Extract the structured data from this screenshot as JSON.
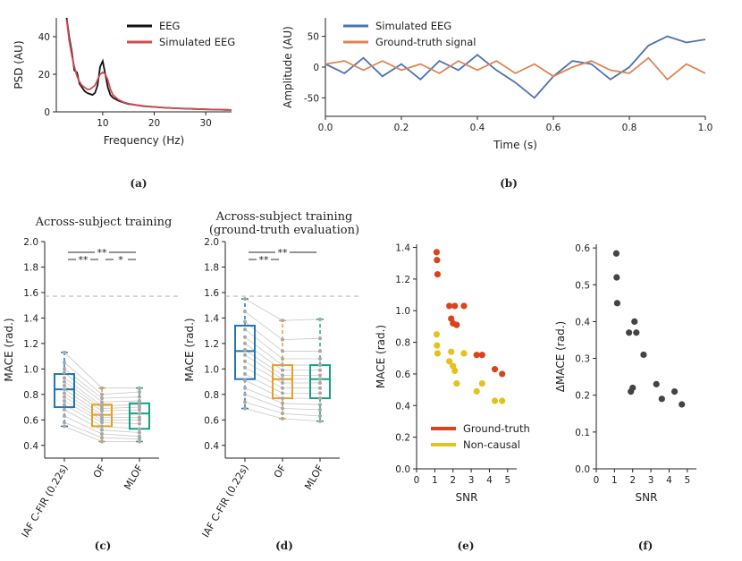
{
  "panel_labels": {
    "a": "(a)",
    "b": "(b)",
    "c": "(c)",
    "d": "(d)",
    "e": "(e)",
    "f": "(f)"
  },
  "chart_data": [
    {
      "id": "a",
      "type": "line",
      "xlabel": "Frequency (Hz)",
      "ylabel": "PSD (AU)",
      "xlim": [
        1,
        35
      ],
      "ylim": [
        0,
        50
      ],
      "xticks": [
        10,
        20,
        30
      ],
      "yticks": [
        0,
        20,
        40
      ],
      "legend": {
        "placement": "top-right"
      },
      "series": [
        {
          "name": "EEG",
          "color": "#111111",
          "x": [
            3,
            3.5,
            4,
            4.5,
            5,
            5.5,
            6,
            6.5,
            7,
            7.5,
            8,
            8.5,
            9,
            9.5,
            10,
            10.5,
            11,
            11.5,
            12,
            13,
            14,
            15,
            16,
            18,
            20,
            22,
            24,
            26,
            28,
            30,
            32,
            35
          ],
          "y": [
            50,
            40,
            32,
            22,
            21,
            15,
            13,
            11,
            10,
            9.5,
            9,
            10,
            14,
            24,
            27,
            20,
            13,
            9,
            7.5,
            6,
            5,
            4.2,
            3.8,
            3,
            2.6,
            2.2,
            1.9,
            1.7,
            1.5,
            1.4,
            1.2,
            1.0
          ]
        },
        {
          "name": "Simulated EEG",
          "color": "#d24b4e",
          "x": [
            3,
            3.5,
            4,
            4.5,
            5,
            5.5,
            6,
            6.5,
            7,
            7.5,
            8,
            8.5,
            9,
            9.5,
            10,
            10.5,
            11,
            11.5,
            12,
            13,
            14,
            15,
            16,
            18,
            20,
            22,
            24,
            26,
            28,
            30,
            32,
            35
          ],
          "y": [
            49,
            38,
            30,
            24,
            19,
            16,
            14,
            13,
            12,
            12,
            13,
            14,
            17,
            20,
            21,
            20,
            17,
            12,
            9,
            6.5,
            5.2,
            4.4,
            3.9,
            3.1,
            2.6,
            2.2,
            1.9,
            1.7,
            1.5,
            1.3,
            1.2,
            1.0
          ]
        }
      ]
    },
    {
      "id": "b",
      "type": "line",
      "xlabel": "Time (s)",
      "ylabel": "Amplitude (AU)",
      "xlim": [
        0,
        1
      ],
      "ylim": [
        -80,
        80
      ],
      "xticks": [
        0,
        0.2,
        0.4,
        0.6,
        0.8,
        1.0
      ],
      "xtick_labels": [
        "0.0",
        "0.2",
        "0.4",
        "0.6",
        "0.8",
        "1.0"
      ],
      "yticks": [
        -50,
        0,
        50
      ],
      "legend": {
        "placement": "top-left"
      },
      "series": [
        {
          "name": "Simulated EEG",
          "color": "#4c72b0",
          "x": [
            0,
            0.05,
            0.1,
            0.15,
            0.2,
            0.25,
            0.3,
            0.35,
            0.4,
            0.45,
            0.5,
            0.55,
            0.6,
            0.65,
            0.7,
            0.75,
            0.8,
            0.85,
            0.9,
            0.95,
            1.0
          ],
          "y": [
            5,
            -10,
            15,
            -15,
            5,
            -20,
            10,
            -5,
            20,
            -5,
            -25,
            -50,
            -15,
            10,
            5,
            -20,
            0,
            35,
            50,
            40,
            45
          ]
        },
        {
          "name": "Ground-truth signal",
          "color": "#dd8452",
          "x": [
            0,
            0.05,
            0.1,
            0.15,
            0.2,
            0.25,
            0.3,
            0.35,
            0.4,
            0.45,
            0.5,
            0.55,
            0.6,
            0.65,
            0.7,
            0.75,
            0.8,
            0.85,
            0.9,
            0.95,
            1.0
          ],
          "y": [
            5,
            10,
            -5,
            10,
            -5,
            5,
            -10,
            10,
            -5,
            10,
            -10,
            5,
            -15,
            0,
            10,
            -5,
            -10,
            15,
            -20,
            5,
            -10
          ]
        }
      ]
    },
    {
      "id": "c",
      "type": "box",
      "title": "Across-subject training",
      "ylabel": "MACE (rad.)",
      "ylim": [
        0.3,
        2.0
      ],
      "yticks": [
        0.4,
        0.6,
        0.8,
        1.0,
        1.2,
        1.4,
        1.6,
        1.8,
        2.0
      ],
      "ytick_labels": [
        "0.4",
        "0.6",
        "0.8",
        "1.0",
        "1.2",
        "1.4",
        "1.6",
        "1.8",
        "2.0"
      ],
      "chance_level": 1.571,
      "categories": [
        "IAF C-FIR (0.22s)",
        "OF",
        "MLOF"
      ],
      "colors": [
        "#1f77b4",
        "#e5a123",
        "#16a085"
      ],
      "boxes": [
        {
          "q1": 0.7,
          "median": 0.84,
          "q3": 0.96,
          "whisker_low": 0.55,
          "whisker_high": 1.13
        },
        {
          "q1": 0.55,
          "median": 0.64,
          "q3": 0.72,
          "whisker_low": 0.43,
          "whisker_high": 0.85
        },
        {
          "q1": 0.53,
          "median": 0.65,
          "q3": 0.73,
          "whisker_low": 0.43,
          "whisker_high": 0.85
        }
      ],
      "subjects": [
        [
          1.13,
          1.05,
          1.0,
          0.97,
          0.93,
          0.9,
          0.87,
          0.84,
          0.81,
          0.78,
          0.75,
          0.72,
          0.68,
          0.63,
          0.58,
          0.55
        ],
        [
          0.85,
          0.8,
          0.77,
          0.74,
          0.71,
          0.69,
          0.67,
          0.64,
          0.62,
          0.6,
          0.58,
          0.55,
          0.52,
          0.49,
          0.46,
          0.43
        ],
        [
          0.85,
          0.82,
          0.78,
          0.75,
          0.72,
          0.7,
          0.68,
          0.65,
          0.62,
          0.6,
          0.57,
          0.53,
          0.5,
          0.47,
          0.45,
          0.43
        ]
      ],
      "significance": [
        {
          "from": 0,
          "to": 2,
          "label": "**"
        },
        {
          "from": 0,
          "to": 1,
          "label": "**"
        },
        {
          "from": 1,
          "to": 2,
          "label": "*"
        }
      ]
    },
    {
      "id": "d",
      "type": "box",
      "title": "Across-subject training",
      "subtitle": "(ground-truth evaluation)",
      "ylabel": "MACE (rad.)",
      "ylim": [
        0.3,
        2.0
      ],
      "yticks": [
        0.4,
        0.6,
        0.8,
        1.0,
        1.2,
        1.4,
        1.6,
        1.8,
        2.0
      ],
      "ytick_labels": [
        "0.4",
        "0.6",
        "0.8",
        "1.0",
        "1.2",
        "1.4",
        "1.6",
        "1.8",
        "2.0"
      ],
      "chance_level": 1.571,
      "categories": [
        "IAF C-FIR (0.22s)",
        "OF",
        "MLOF"
      ],
      "colors": [
        "#1f77b4",
        "#e5a123",
        "#16a085"
      ],
      "boxes": [
        {
          "q1": 0.92,
          "median": 1.14,
          "q3": 1.34,
          "whisker_low": 0.69,
          "whisker_high": 1.55
        },
        {
          "q1": 0.77,
          "median": 0.92,
          "q3": 1.03,
          "whisker_low": 0.61,
          "whisker_high": 1.38
        },
        {
          "q1": 0.77,
          "median": 0.92,
          "q3": 1.03,
          "whisker_low": 0.59,
          "whisker_high": 1.39
        }
      ],
      "subjects": [
        [
          1.55,
          1.45,
          1.37,
          1.31,
          1.25,
          1.2,
          1.15,
          1.11,
          1.06,
          1.01,
          0.96,
          0.91,
          0.85,
          0.8,
          0.74,
          0.69
        ],
        [
          1.38,
          1.23,
          1.14,
          1.08,
          1.03,
          0.99,
          0.95,
          0.92,
          0.89,
          0.85,
          0.81,
          0.77,
          0.73,
          0.69,
          0.65,
          0.61
        ],
        [
          1.39,
          1.24,
          1.14,
          1.08,
          1.03,
          0.99,
          0.95,
          0.92,
          0.89,
          0.85,
          0.81,
          0.77,
          0.72,
          0.68,
          0.63,
          0.59
        ]
      ],
      "significance": [
        {
          "from": 0,
          "to": 2,
          "label": "**"
        },
        {
          "from": 0,
          "to": 1,
          "label": "**"
        }
      ]
    },
    {
      "id": "e",
      "type": "scatter",
      "xlabel": "SNR",
      "ylabel": "MACE (rad.)",
      "xlim": [
        0,
        5.5
      ],
      "ylim": [
        0,
        1.42
      ],
      "xticks": [
        0,
        1,
        2,
        3,
        4,
        5
      ],
      "yticks": [
        0.0,
        0.2,
        0.4,
        0.6,
        0.8,
        1.0,
        1.2,
        1.4
      ],
      "ytick_labels": [
        "0.0",
        "0.2",
        "0.4",
        "0.6",
        "0.8",
        "1.0",
        "1.2",
        "1.4"
      ],
      "legend": {
        "placement": "bottom-left"
      },
      "series": [
        {
          "name": "Ground-truth",
          "color": "#d9441e",
          "x": [
            1.1,
            1.12,
            1.15,
            1.8,
            1.9,
            2.0,
            2.1,
            2.2,
            2.6,
            3.3,
            3.6,
            4.3,
            4.7
          ],
          "y": [
            1.37,
            1.32,
            1.23,
            1.03,
            0.95,
            0.92,
            1.03,
            0.91,
            1.03,
            0.72,
            0.72,
            0.63,
            0.6
          ]
        },
        {
          "name": "Non-causal",
          "color": "#e4c21b",
          "x": [
            1.1,
            1.12,
            1.15,
            1.8,
            1.9,
            2.0,
            2.1,
            2.2,
            2.6,
            3.3,
            3.6,
            4.3,
            4.7
          ],
          "y": [
            0.85,
            0.78,
            0.73,
            0.68,
            0.74,
            0.65,
            0.62,
            0.54,
            0.73,
            0.49,
            0.54,
            0.43,
            0.43
          ]
        }
      ]
    },
    {
      "id": "f",
      "type": "scatter",
      "xlabel": "SNR",
      "ylabel": "ΔMACE (rad.)",
      "xlim": [
        0,
        5.5
      ],
      "ylim": [
        0,
        0.61
      ],
      "xticks": [
        0,
        1,
        2,
        3,
        4,
        5
      ],
      "yticks": [
        0.0,
        0.1,
        0.2,
        0.3,
        0.4,
        0.5,
        0.6
      ],
      "ytick_labels": [
        "0.0",
        "0.1",
        "0.2",
        "0.3",
        "0.4",
        "0.5",
        "0.6"
      ],
      "series": [
        {
          "name": "ΔMACE",
          "color": "#444444",
          "x": [
            1.1,
            1.12,
            1.15,
            1.8,
            1.9,
            2.0,
            2.1,
            2.2,
            2.6,
            3.3,
            3.6,
            4.3,
            4.7
          ],
          "y": [
            0.585,
            0.52,
            0.45,
            0.37,
            0.21,
            0.22,
            0.4,
            0.37,
            0.31,
            0.23,
            0.19,
            0.21,
            0.175
          ]
        }
      ]
    }
  ]
}
